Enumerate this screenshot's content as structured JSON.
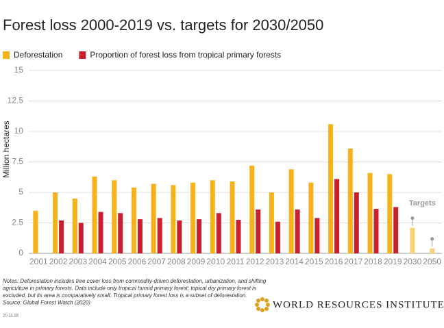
{
  "chart_data": {
    "type": "bar",
    "title": "Forest loss 2000-2019 vs. targets for 2030/2050",
    "y_label": "Million hectares",
    "categories": [
      "2001",
      "2002",
      "2003",
      "2004",
      "2005",
      "2006",
      "2007",
      "2008",
      "2009",
      "2010",
      "2011",
      "2012",
      "2013",
      "2014",
      "2015",
      "2016",
      "2017",
      "2018",
      "2019",
      "2030",
      "2050"
    ],
    "series": [
      {
        "name": "Deforestation",
        "color": "#f5b21b",
        "colors": [
          "#f5b21b",
          "#f5b21b",
          "#f5b21b",
          "#f5b21b",
          "#f5b21b",
          "#f5b21b",
          "#f5b21b",
          "#f5b21b",
          "#f5b21b",
          "#f5b21b",
          "#f5b21b",
          "#f5b21b",
          "#f5b21b",
          "#f5b21b",
          "#f5b21b",
          "#f5b21b",
          "#f5b21b",
          "#f5b21b",
          "#f5b21b",
          "#f9d27a",
          "#f9d27a"
        ],
        "values": [
          3.5,
          5.0,
          4.5,
          6.3,
          6.0,
          5.4,
          5.7,
          5.6,
          5.8,
          6.0,
          5.9,
          7.2,
          5.0,
          6.9,
          5.8,
          10.6,
          8.6,
          6.6,
          6.5,
          2.1,
          0.4
        ]
      },
      {
        "name": "Proportion of forest loss from tropical primary forests",
        "color": "#c8202f",
        "values": [
          null,
          2.7,
          2.5,
          3.4,
          3.3,
          2.8,
          2.9,
          2.7,
          2.8,
          3.3,
          2.75,
          3.6,
          2.6,
          3.6,
          2.9,
          6.1,
          5.0,
          3.65,
          3.8,
          null,
          null
        ]
      }
    ],
    "ylim": [
      0,
      15
    ],
    "yticks": [
      0,
      2.5,
      5,
      7.5,
      10,
      12.5,
      15
    ],
    "grid": true,
    "annotation": "Targets",
    "notes": [
      "Notes: Deforestation includes tree cover loss from commodity-driven deforestation, urbanization, and shifting",
      "agriculture in primary forests. Data include only tropical humid primary forest; topical dry primary forest is",
      "excluded, but its area is comparatively small. Tropical primary forest loss is a subset of deforestation.",
      "Source: Global Forest Watch (2020)"
    ],
    "date": "20.11.18",
    "brand": "WORLD RESOURCES INSTITUTE"
  }
}
